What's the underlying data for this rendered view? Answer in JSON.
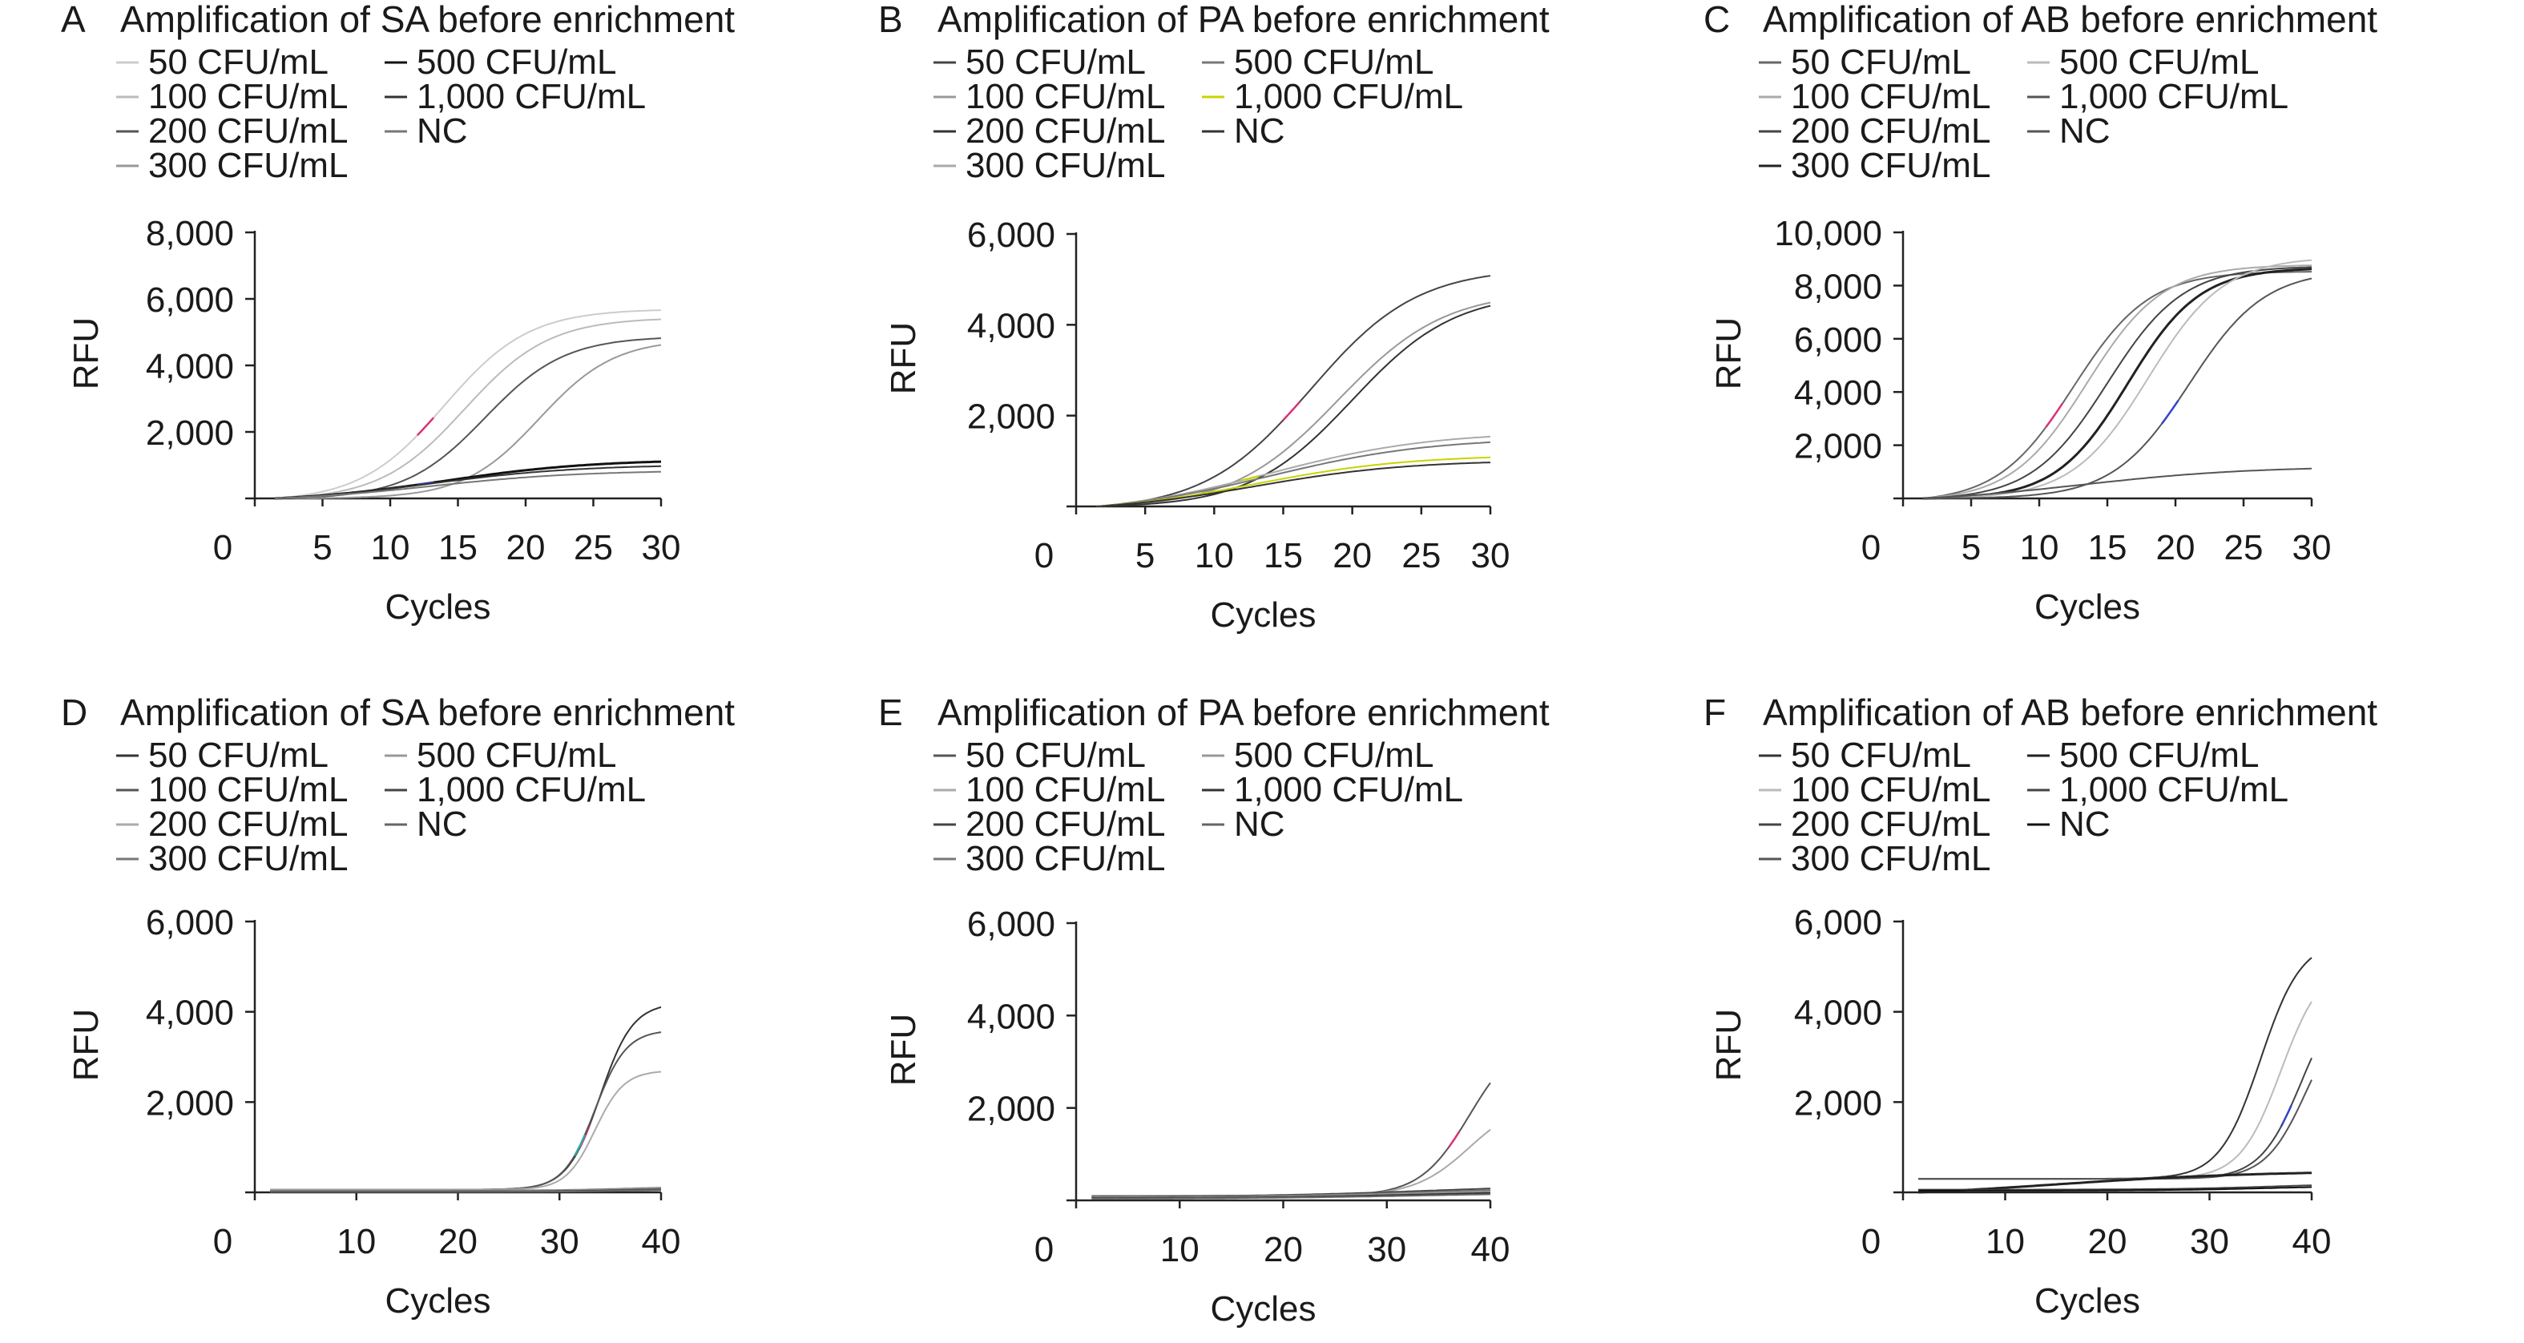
{
  "figure": {
    "colors": {
      "text": "#1a1a1a",
      "axis": "#222222",
      "accent_red": "#d9327a",
      "accent_blue": "#3344cc",
      "accent_yellow": "#c8d400",
      "accent_teal": "#33aaaa"
    }
  },
  "chart_data": [
    {
      "type": "line",
      "letter": "A",
      "title": "Amplification of SA before enrichment",
      "xlabel": "Cycles",
      "ylabel": "RFU",
      "xlim": [
        0,
        30
      ],
      "ylim": [
        0,
        8000
      ],
      "xticks": [
        "0",
        "5",
        "10",
        "15",
        "20",
        "25",
        "30"
      ],
      "xtick_values": [
        0,
        5,
        10,
        15,
        20,
        25,
        30
      ],
      "yticks": [
        "2,000",
        "4,000",
        "6,000",
        "8,000"
      ],
      "ytick_values": [
        2000,
        4000,
        6000,
        8000
      ],
      "legend": [
        "50 CFU/mL",
        "100 CFU/mL",
        "200 CFU/mL",
        "300 CFU/mL",
        "500 CFU/mL",
        "1,000 CFU/mL",
        "NC"
      ],
      "grid": false,
      "series": [
        {
          "plateau": 5800,
          "mid": 14,
          "k": 0.32,
          "color": "#cccccc",
          "width": 2,
          "accent": "#d9327a"
        },
        {
          "plateau": 5500,
          "mid": 15.5,
          "k": 0.32,
          "color": "#bbbbbb",
          "width": 2
        },
        {
          "plateau": 4900,
          "mid": 17,
          "k": 0.34,
          "color": "#555555",
          "width": 2
        },
        {
          "plateau": 4800,
          "mid": 21,
          "k": 0.36,
          "color": "#999999",
          "width": 2
        },
        {
          "plateau": 1300,
          "mid": 14,
          "k": 0.18,
          "color": "#111111",
          "width": 3,
          "accent": "#3344cc"
        },
        {
          "plateau": 1150,
          "mid": 13,
          "k": 0.18,
          "color": "#333333",
          "width": 2
        },
        {
          "plateau": 950,
          "mid": 13,
          "k": 0.18,
          "color": "#777777",
          "width": 2
        }
      ]
    },
    {
      "type": "line",
      "letter": "B",
      "title": "Amplification of PA before enrichment",
      "xlabel": "Cycles",
      "ylabel": "RFU",
      "xlim": [
        0,
        30
      ],
      "ylim": [
        0,
        6000
      ],
      "xticks": [
        "0",
        "5",
        "10",
        "15",
        "20",
        "25",
        "30"
      ],
      "xtick_values": [
        0,
        5,
        10,
        15,
        20,
        25,
        30
      ],
      "yticks": [
        "2,000",
        "4,000",
        "6,000"
      ],
      "ytick_values": [
        2000,
        4000,
        6000
      ],
      "legend": [
        "50 CFU/mL",
        "100 CFU/mL",
        "200 CFU/mL",
        "300 CFU/mL",
        "500 CFU/mL",
        "1,000 CFU/mL",
        "NC"
      ],
      "grid": false,
      "series": [
        {
          "plateau": 5350,
          "mid": 17,
          "k": 0.26,
          "color": "#444444",
          "width": 2,
          "accent": "#d9327a"
        },
        {
          "plateau": 4800,
          "mid": 19,
          "k": 0.26,
          "color": "#999999",
          "width": 2
        },
        {
          "plateau": 4750,
          "mid": 20,
          "k": 0.27,
          "color": "#333333",
          "width": 2
        },
        {
          "plateau": 1850,
          "mid": 14,
          "k": 0.17,
          "color": "#aaaaaa",
          "width": 2,
          "accent": "#c8d400"
        },
        {
          "plateau": 1700,
          "mid": 14,
          "k": 0.17,
          "color": "#777777",
          "width": 2
        },
        {
          "plateau": 1280,
          "mid": 13,
          "k": 0.18,
          "color": "#c8d400",
          "width": 2
        },
        {
          "plateau": 1150,
          "mid": 13,
          "k": 0.18,
          "color": "#333333",
          "width": 2
        }
      ]
    },
    {
      "type": "line",
      "letter": "C",
      "title": "Amplification of AB before enrichment",
      "xlabel": "Cycles",
      "ylabel": "RFU",
      "xlim": [
        0,
        30
      ],
      "ylim": [
        0,
        10000
      ],
      "xticks": [
        "0",
        "5",
        "10",
        "15",
        "20",
        "25",
        "30"
      ],
      "xtick_values": [
        0,
        5,
        10,
        15,
        20,
        25,
        30
      ],
      "yticks": [
        "2,000",
        "4,000",
        "6,000",
        "8,000",
        "10,000"
      ],
      "ytick_values": [
        2000,
        4000,
        6000,
        8000,
        10000
      ],
      "legend": [
        "50 CFU/mL",
        "100 CFU/mL",
        "200 CFU/mL",
        "300 CFU/mL",
        "500 CFU/mL",
        "1,000 CFU/mL",
        "NC"
      ],
      "grid": false,
      "series": [
        {
          "plateau": 8700,
          "mid": 12.5,
          "k": 0.36,
          "color": "#666666",
          "width": 2,
          "accent": "#d9327a"
        },
        {
          "plateau": 8900,
          "mid": 13.5,
          "k": 0.36,
          "color": "#aaaaaa",
          "width": 2
        },
        {
          "plateau": 8800,
          "mid": 15,
          "k": 0.36,
          "color": "#444444",
          "width": 2
        },
        {
          "plateau": 8700,
          "mid": 16.5,
          "k": 0.38,
          "color": "#222222",
          "width": 3
        },
        {
          "plateau": 9100,
          "mid": 18,
          "k": 0.36,
          "color": "#bbbbbb",
          "width": 2
        },
        {
          "plateau": 8600,
          "mid": 21,
          "k": 0.36,
          "color": "#555555",
          "width": 2,
          "accent": "#3344cc"
        },
        {
          "plateau": 1400,
          "mid": 13,
          "k": 0.16,
          "color": "#555555",
          "width": 2
        }
      ]
    },
    {
      "type": "line",
      "letter": "D",
      "title": "Amplification of SA before enrichment",
      "xlabel": "Cycles",
      "ylabel": "RFU",
      "xlim": [
        0,
        40
      ],
      "ylim": [
        0,
        6000
      ],
      "xticks": [
        "0",
        "10",
        "20",
        "30",
        "40"
      ],
      "xtick_values": [
        0,
        10,
        20,
        30,
        40
      ],
      "yticks": [
        "2,000",
        "4,000",
        "6,000"
      ],
      "ytick_values": [
        2000,
        4000,
        6000
      ],
      "legend": [
        "50 CFU/mL",
        "100 CFU/mL",
        "200 CFU/mL",
        "300 CFU/mL",
        "500 CFU/mL",
        "1,000 CFU/mL",
        "NC"
      ],
      "grid": false,
      "series": [
        {
          "plateau": 4200,
          "mid": 34,
          "k": 0.62,
          "color": "#333333",
          "width": 2,
          "accent": "#d9327a",
          "base": 60
        },
        {
          "plateau": 3600,
          "mid": 33.5,
          "k": 0.65,
          "color": "#555555",
          "width": 2,
          "accent": "#33aaaa",
          "base": 60
        },
        {
          "plateau": 2700,
          "mid": 33.5,
          "k": 0.7,
          "color": "#aaaaaa",
          "width": 2,
          "base": 60
        },
        {
          "plateau": 120,
          "mid": 36,
          "k": 0.3,
          "color": "#777777",
          "width": 2,
          "base": 40
        },
        {
          "plateau": 100,
          "mid": 36,
          "k": 0.3,
          "color": "#999999",
          "width": 2,
          "base": 30
        },
        {
          "plateau": 80,
          "mid": 36,
          "k": 0.3,
          "color": "#444444",
          "width": 2,
          "base": 20
        },
        {
          "plateau": 60,
          "mid": 36,
          "k": 0.3,
          "color": "#666666",
          "width": 2,
          "base": 10
        }
      ]
    },
    {
      "type": "line",
      "letter": "E",
      "title": "Amplification of PA before enrichment",
      "xlabel": "Cycles",
      "ylabel": "RFU",
      "xlim": [
        0,
        40
      ],
      "ylim": [
        0,
        6000
      ],
      "xticks": [
        "0",
        "10",
        "20",
        "30",
        "40"
      ],
      "xtick_values": [
        0,
        10,
        20,
        30,
        40
      ],
      "yticks": [
        "2,000",
        "4,000",
        "6,000"
      ],
      "ytick_values": [
        2000,
        4000,
        6000
      ],
      "legend": [
        "50 CFU/mL",
        "100 CFU/mL",
        "200 CFU/mL",
        "300 CFU/mL",
        "500 CFU/mL",
        "1,000 CFU/mL",
        "NC"
      ],
      "grid": false,
      "series": [
        {
          "plateau": 3600,
          "mid": 38,
          "k": 0.42,
          "color": "#555555",
          "width": 2,
          "accent": "#d9327a",
          "base": 100
        },
        {
          "plateau": 2200,
          "mid": 38,
          "k": 0.38,
          "color": "#aaaaaa",
          "width": 2,
          "base": 100
        },
        {
          "plateau": 350,
          "mid": 34,
          "k": 0.12,
          "color": "#444444",
          "width": 2,
          "base": 80
        },
        {
          "plateau": 300,
          "mid": 34,
          "k": 0.12,
          "color": "#777777",
          "width": 2,
          "base": 70
        },
        {
          "plateau": 260,
          "mid": 34,
          "k": 0.12,
          "color": "#999999",
          "width": 2,
          "base": 60
        },
        {
          "plateau": 220,
          "mid": 34,
          "k": 0.12,
          "color": "#333333",
          "width": 2,
          "base": 50
        },
        {
          "plateau": 180,
          "mid": 34,
          "k": 0.12,
          "color": "#666666",
          "width": 2,
          "base": 40
        }
      ]
    },
    {
      "type": "line",
      "letter": "F",
      "title": "Amplification of AB before enrichment",
      "xlabel": "Cycles",
      "ylabel": "RFU",
      "xlim": [
        0,
        40
      ],
      "ylim": [
        0,
        6000
      ],
      "xticks": [
        "0",
        "10",
        "20",
        "30",
        "40"
      ],
      "xtick_values": [
        0,
        10,
        20,
        30,
        40
      ],
      "yticks": [
        "2,000",
        "4,000",
        "6,000"
      ],
      "ytick_values": [
        2000,
        4000,
        6000
      ],
      "legend": [
        "50 CFU/mL",
        "100 CFU/mL",
        "200 CFU/mL",
        "300 CFU/mL",
        "500 CFU/mL",
        "1,000 CFU/mL",
        "NC"
      ],
      "grid": false,
      "series": [
        {
          "plateau": 5600,
          "mid": 35,
          "k": 0.5,
          "color": "#333333",
          "width": 2,
          "base": 300
        },
        {
          "plateau": 5100,
          "mid": 37,
          "k": 0.5,
          "color": "#bbbbbb",
          "width": 2,
          "base": 300
        },
        {
          "plateau": 4600,
          "mid": 39,
          "k": 0.5,
          "color": "#444444",
          "width": 2,
          "accent": "#3344cc",
          "base": 300
        },
        {
          "plateau": 4200,
          "mid": 39.5,
          "k": 0.5,
          "color": "#555555",
          "width": 2,
          "base": 300
        },
        {
          "plateau": 600,
          "mid": 15,
          "k": 0.1,
          "color": "#222222",
          "width": 3,
          "base": 0
        },
        {
          "plateau": 200,
          "mid": 36,
          "k": 0.2,
          "color": "#444444",
          "width": 2,
          "base": 60
        },
        {
          "plateau": 150,
          "mid": 36,
          "k": 0.2,
          "color": "#111111",
          "width": 2,
          "base": 40
        }
      ]
    }
  ]
}
